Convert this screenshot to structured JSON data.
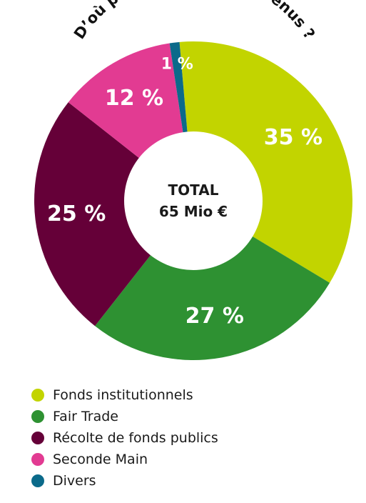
{
  "chart_data": {
    "type": "pie",
    "title": "D’où proviennent nos revenus ?",
    "center_label_line1": "TOTAL",
    "center_label_line2": "65 Mio €",
    "slices": [
      {
        "name": "Fonds institutionnels",
        "value": 35,
        "label": "35 %",
        "color": "#c2d400"
      },
      {
        "name": "Fair Trade",
        "value": 27,
        "label": "27 %",
        "color": "#2e9132"
      },
      {
        "name": "Récolte de fonds publics",
        "value": 25,
        "label": "25 %",
        "color": "#650038"
      },
      {
        "name": "Seconde Main",
        "value": 12,
        "label": "12 %",
        "color": "#e23b92"
      },
      {
        "name": "Divers",
        "value": 1,
        "label": "1 %",
        "color": "#0b6a8a"
      }
    ],
    "legend_position": "bottom-left"
  }
}
